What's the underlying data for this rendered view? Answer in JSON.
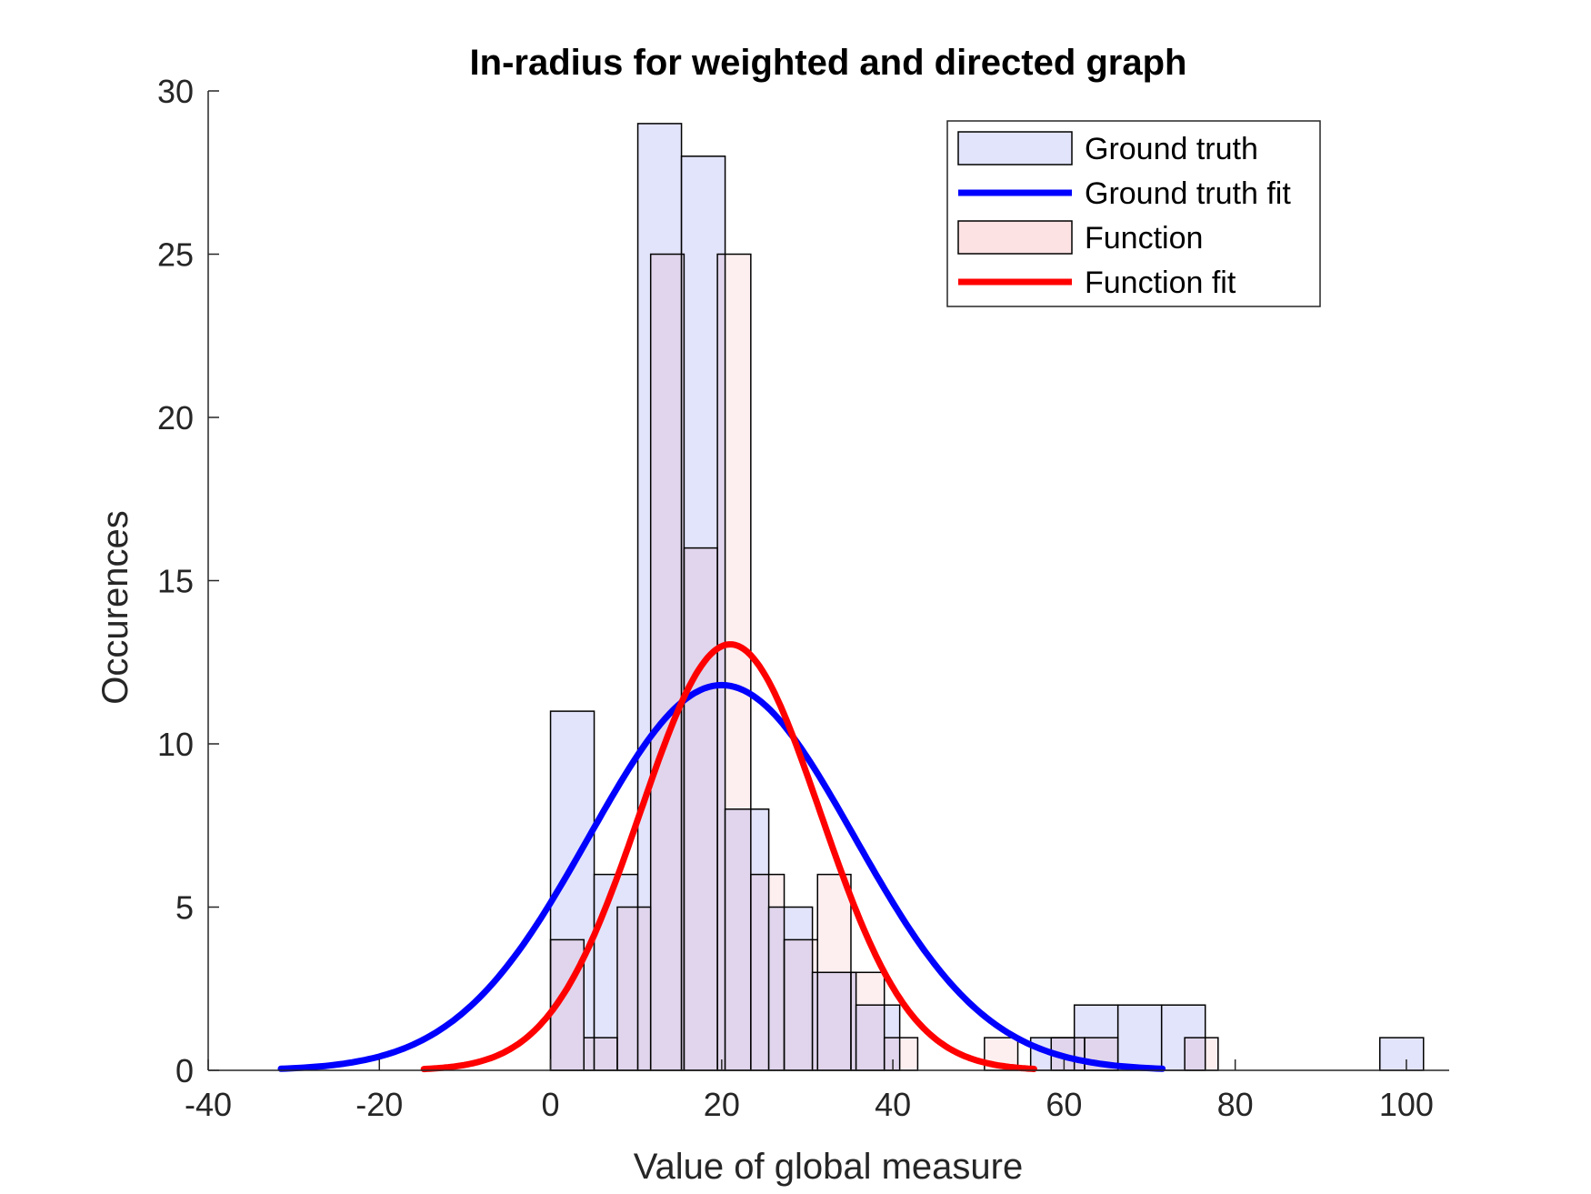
{
  "chart_data": {
    "type": "histogram",
    "title": "In-radius for weighted and directed graph",
    "xlabel": "Value of global measure",
    "ylabel": "Occurences",
    "xlim": [
      -40,
      105
    ],
    "ylim": [
      0,
      30
    ],
    "xticks": [
      -40,
      -20,
      0,
      20,
      40,
      60,
      80,
      100
    ],
    "yticks": [
      0,
      5,
      10,
      15,
      20,
      25,
      30
    ],
    "legend_position": "top-right",
    "colors": {
      "ground_truth_bar": "#e2e4fb",
      "function_bar": "#fce2e3",
      "overlap_bar": "#e3cde3",
      "ground_truth_fit": "#0000ff",
      "function_fit": "#ff0000",
      "bar_edge": "#000000"
    },
    "series": [
      {
        "name": "Ground truth",
        "kind": "bars",
        "bins": [
          {
            "x0": 0,
            "x1": 5.1,
            "count": 11
          },
          {
            "x0": 5.1,
            "x1": 10.2,
            "count": 6
          },
          {
            "x0": 10.2,
            "x1": 15.3,
            "count": 29
          },
          {
            "x0": 15.3,
            "x1": 20.4,
            "count": 28
          },
          {
            "x0": 20.4,
            "x1": 25.5,
            "count": 8
          },
          {
            "x0": 25.5,
            "x1": 30.6,
            "count": 5
          },
          {
            "x0": 30.6,
            "x1": 35.7,
            "count": 3
          },
          {
            "x0": 35.7,
            "x1": 40.8,
            "count": 2
          },
          {
            "x0": 56.1,
            "x1": 61.2,
            "count": 1
          },
          {
            "x0": 61.2,
            "x1": 66.3,
            "count": 2
          },
          {
            "x0": 66.3,
            "x1": 71.4,
            "count": 2
          },
          {
            "x0": 71.4,
            "x1": 76.5,
            "count": 2
          },
          {
            "x0": 96.9,
            "x1": 102,
            "count": 1
          }
        ]
      },
      {
        "name": "Ground truth fit",
        "kind": "normal_fit",
        "mu": 20,
        "sigma": 15.5,
        "peak": 11.8,
        "x_range": [
          -31.5,
          71.5
        ]
      },
      {
        "name": "Function",
        "kind": "bars",
        "bins": [
          {
            "x0": 0,
            "x1": 3.9,
            "count": 4
          },
          {
            "x0": 3.9,
            "x1": 7.8,
            "count": 1
          },
          {
            "x0": 7.8,
            "x1": 11.7,
            "count": 5
          },
          {
            "x0": 11.7,
            "x1": 15.6,
            "count": 25
          },
          {
            "x0": 15.6,
            "x1": 19.5,
            "count": 16
          },
          {
            "x0": 19.5,
            "x1": 23.4,
            "count": 25
          },
          {
            "x0": 23.4,
            "x1": 27.3,
            "count": 6
          },
          {
            "x0": 27.3,
            "x1": 31.2,
            "count": 4
          },
          {
            "x0": 31.2,
            "x1": 35.1,
            "count": 6
          },
          {
            "x0": 35.1,
            "x1": 39.0,
            "count": 3
          },
          {
            "x0": 39.0,
            "x1": 42.9,
            "count": 1
          },
          {
            "x0": 50.7,
            "x1": 54.6,
            "count": 1
          },
          {
            "x0": 58.5,
            "x1": 62.4,
            "count": 1
          },
          {
            "x0": 62.4,
            "x1": 66.3,
            "count": 1
          },
          {
            "x0": 74.1,
            "x1": 78.0,
            "count": 1
          }
        ]
      },
      {
        "name": "Function fit",
        "kind": "normal_fit",
        "mu": 21,
        "sigma": 10.5,
        "peak": 13.05,
        "x_range": [
          -14.8,
          56.5
        ]
      }
    ]
  }
}
